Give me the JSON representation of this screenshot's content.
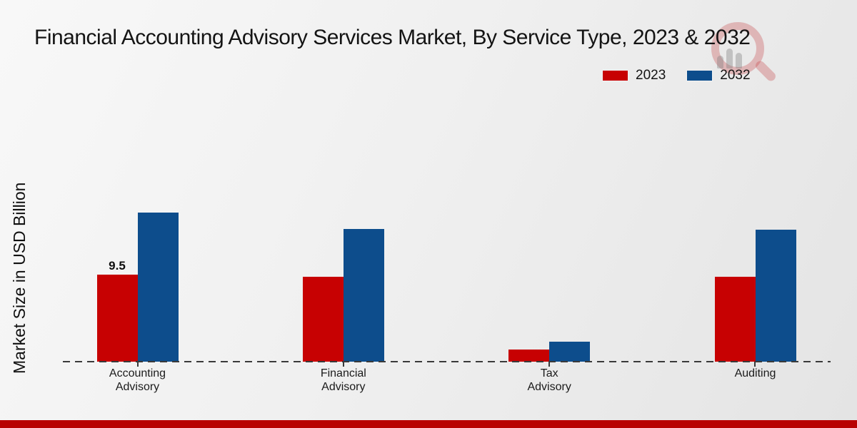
{
  "page": {
    "title": "Financial Accounting Advisory Services Market, By Service Type, 2023 & 2032",
    "ylabel": "Market Size in USD Billion",
    "footer_bar_color": "#b80202",
    "watermark_icon": "magnifier-chart-logo"
  },
  "legend": {
    "items": [
      {
        "label": "2023",
        "color": "#c70102"
      },
      {
        "label": "2032",
        "color": "#0d4d8c"
      }
    ]
  },
  "chart_data": {
    "type": "bar",
    "title": "Financial Accounting Advisory Services Market, By Service Type, 2023 & 2032",
    "xlabel": "",
    "ylabel": "Market Size in USD Billion",
    "unit": "USD Billion",
    "categories": [
      "Accounting Advisory",
      "Financial Advisory",
      "Tax Advisory",
      "Auditing"
    ],
    "category_lines": [
      [
        "Accounting",
        "Advisory"
      ],
      [
        "Financial",
        "Advisory"
      ],
      [
        "Tax",
        "Advisory"
      ],
      [
        "Auditing"
      ]
    ],
    "series": [
      {
        "name": "2023",
        "color": "#c70102",
        "values": [
          9.5,
          9.3,
          1.3,
          9.3
        ]
      },
      {
        "name": "2032",
        "color": "#0d4d8c",
        "values": [
          16.3,
          14.5,
          2.2,
          14.4
        ]
      }
    ],
    "bar_value_labels": [
      {
        "series_index": 0,
        "category_index": 0,
        "text": "9.5"
      }
    ],
    "baseline_style": "dashed",
    "grid": false,
    "legend_position": "top-right"
  }
}
